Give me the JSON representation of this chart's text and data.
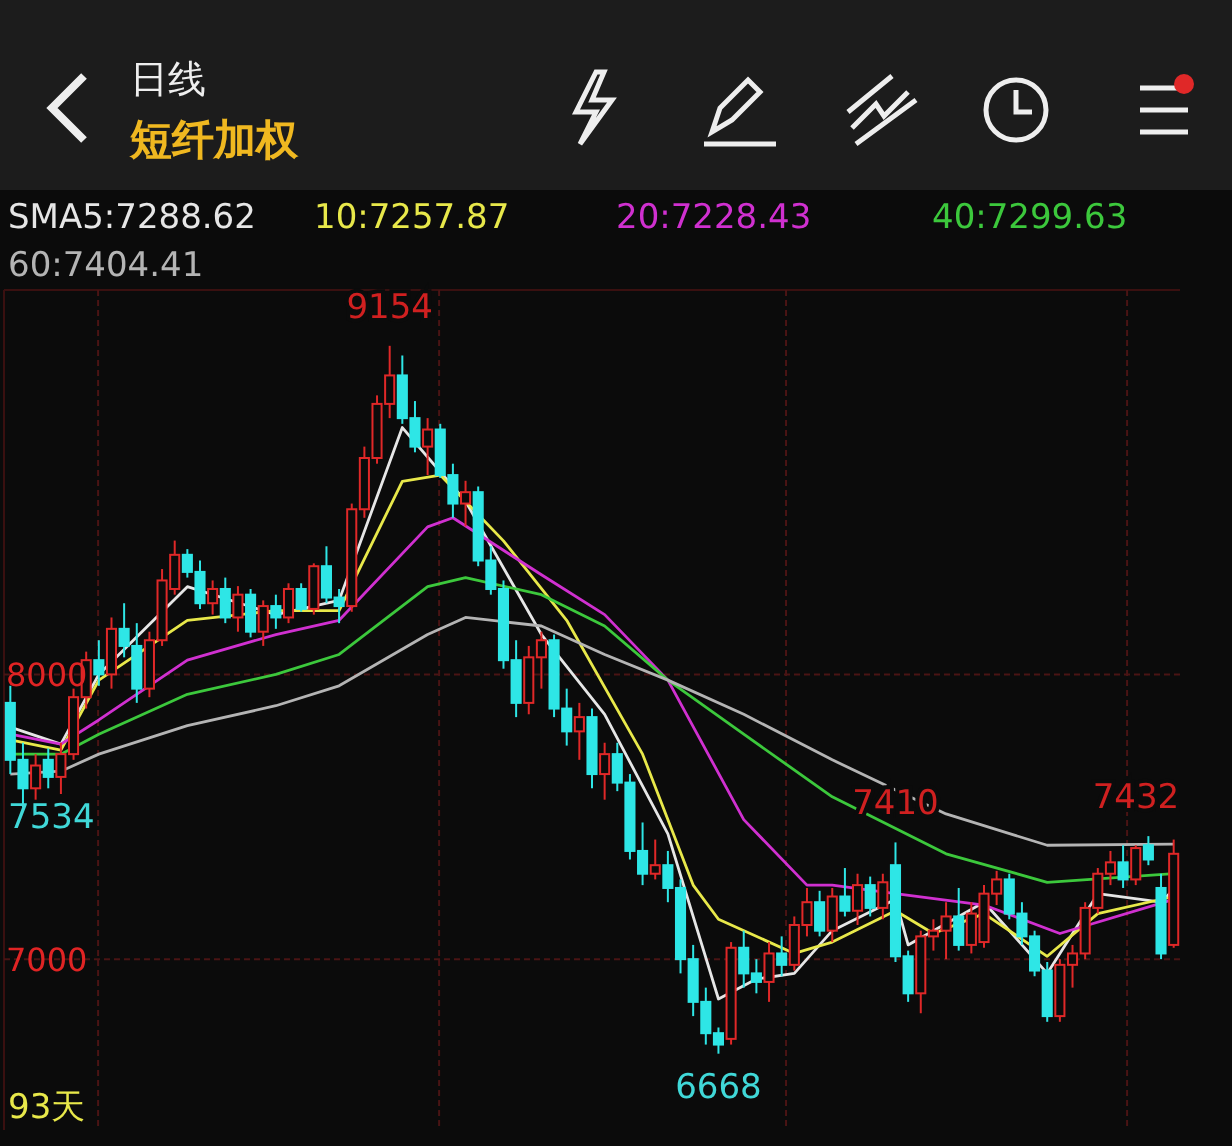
{
  "chart_data": {
    "type": "candlestick",
    "title": "短纤加权",
    "subtitle": "日线",
    "categories": [
      null,
      null,
      null,
      null,
      null,
      null,
      null,
      null,
      null,
      null,
      null,
      null,
      null,
      null,
      null,
      null,
      null,
      null,
      null,
      null,
      null,
      null,
      null,
      null,
      null,
      null,
      null,
      null,
      null,
      null,
      null,
      null,
      null,
      null,
      null,
      null,
      null,
      null,
      null,
      null,
      null,
      null,
      null,
      null,
      null,
      null,
      null,
      null,
      null,
      null,
      null,
      null,
      null,
      null,
      null,
      null,
      null,
      null,
      null,
      null,
      null,
      null,
      null,
      null,
      null,
      null,
      null,
      null,
      null,
      null,
      null,
      null,
      null,
      null,
      null,
      null,
      null,
      null,
      null,
      null,
      null,
      null,
      null,
      null,
      null,
      null,
      null,
      null,
      null,
      null,
      null,
      null,
      null
    ],
    "ohlc": [
      [
        7900,
        7960,
        7650,
        7700
      ],
      [
        7700,
        7760,
        7534,
        7600
      ],
      [
        7600,
        7720,
        7560,
        7680
      ],
      [
        7700,
        7740,
        7600,
        7640
      ],
      [
        7640,
        7760,
        7580,
        7720
      ],
      [
        7720,
        7950,
        7700,
        7920
      ],
      [
        7920,
        8080,
        7880,
        8050
      ],
      [
        8050,
        8120,
        7960,
        8000
      ],
      [
        8000,
        8200,
        7950,
        8160
      ],
      [
        8160,
        8250,
        8060,
        8100
      ],
      [
        8100,
        8180,
        7900,
        7950
      ],
      [
        7950,
        8150,
        7920,
        8120
      ],
      [
        8120,
        8370,
        8100,
        8330
      ],
      [
        8300,
        8470,
        8280,
        8420
      ],
      [
        8420,
        8440,
        8340,
        8360
      ],
      [
        8360,
        8400,
        8230,
        8250
      ],
      [
        8250,
        8330,
        8210,
        8300
      ],
      [
        8300,
        8340,
        8180,
        8200
      ],
      [
        8200,
        8310,
        8150,
        8280
      ],
      [
        8280,
        8300,
        8130,
        8150
      ],
      [
        8150,
        8260,
        8100,
        8240
      ],
      [
        8240,
        8280,
        8160,
        8200
      ],
      [
        8200,
        8320,
        8180,
        8300
      ],
      [
        8300,
        8320,
        8220,
        8230
      ],
      [
        8230,
        8390,
        8210,
        8380
      ],
      [
        8380,
        8450,
        8250,
        8270
      ],
      [
        8270,
        8300,
        8180,
        8240
      ],
      [
        8240,
        8600,
        8220,
        8580
      ],
      [
        8580,
        8800,
        8550,
        8760
      ],
      [
        8760,
        8980,
        8740,
        8950
      ],
      [
        8950,
        9154,
        8900,
        9050
      ],
      [
        9050,
        9120,
        8880,
        8900
      ],
      [
        8900,
        8960,
        8780,
        8800
      ],
      [
        8800,
        8900,
        8700,
        8860
      ],
      [
        8860,
        8880,
        8690,
        8700
      ],
      [
        8700,
        8740,
        8550,
        8600
      ],
      [
        8600,
        8680,
        8520,
        8640
      ],
      [
        8640,
        8660,
        8380,
        8400
      ],
      [
        8400,
        8450,
        8280,
        8300
      ],
      [
        8300,
        8330,
        8020,
        8050
      ],
      [
        8050,
        8120,
        7850,
        7900
      ],
      [
        7900,
        8100,
        7860,
        8060
      ],
      [
        8060,
        8150,
        7950,
        8120
      ],
      [
        8120,
        8140,
        7850,
        7880
      ],
      [
        7880,
        7950,
        7750,
        7800
      ],
      [
        7800,
        7900,
        7700,
        7850
      ],
      [
        7850,
        7880,
        7600,
        7650
      ],
      [
        7650,
        7760,
        7560,
        7720
      ],
      [
        7720,
        7760,
        7590,
        7620
      ],
      [
        7620,
        7650,
        7350,
        7380
      ],
      [
        7380,
        7480,
        7260,
        7300
      ],
      [
        7300,
        7420,
        7280,
        7330
      ],
      [
        7330,
        7380,
        7200,
        7250
      ],
      [
        7250,
        7280,
        6950,
        7000
      ],
      [
        7000,
        7050,
        6800,
        6850
      ],
      [
        6850,
        6900,
        6700,
        6740
      ],
      [
        6740,
        6760,
        6668,
        6700
      ],
      [
        6720,
        7060,
        6700,
        7040
      ],
      [
        7040,
        7100,
        6900,
        6950
      ],
      [
        6950,
        7000,
        6880,
        6920
      ],
      [
        6920,
        7060,
        6850,
        7020
      ],
      [
        7020,
        7080,
        6940,
        6980
      ],
      [
        6980,
        7150,
        6960,
        7120
      ],
      [
        7120,
        7250,
        7080,
        7200
      ],
      [
        7200,
        7240,
        7080,
        7100
      ],
      [
        7100,
        7250,
        7060,
        7220
      ],
      [
        7220,
        7320,
        7150,
        7170
      ],
      [
        7170,
        7300,
        7120,
        7260
      ],
      [
        7260,
        7290,
        7150,
        7180
      ],
      [
        7180,
        7300,
        7140,
        7270
      ],
      [
        7330,
        7410,
        6990,
        7010
      ],
      [
        7010,
        7030,
        6850,
        6880
      ],
      [
        6880,
        7100,
        6810,
        7080
      ],
      [
        7080,
        7140,
        7030,
        7100
      ],
      [
        7100,
        7200,
        7000,
        7150
      ],
      [
        7150,
        7250,
        7030,
        7050
      ],
      [
        7050,
        7200,
        7020,
        7160
      ],
      [
        7060,
        7260,
        7040,
        7230
      ],
      [
        7230,
        7310,
        7190,
        7280
      ],
      [
        7280,
        7300,
        7140,
        7160
      ],
      [
        7160,
        7200,
        7050,
        7080
      ],
      [
        7080,
        7100,
        6940,
        6960
      ],
      [
        6960,
        6990,
        6780,
        6800
      ],
      [
        6800,
        7000,
        6780,
        6980
      ],
      [
        6980,
        7050,
        6900,
        7020
      ],
      [
        7020,
        7200,
        7000,
        7180
      ],
      [
        7180,
        7320,
        7160,
        7300
      ],
      [
        7300,
        7380,
        7260,
        7340
      ],
      [
        7340,
        7400,
        7250,
        7280
      ],
      [
        7280,
        7400,
        7260,
        7390
      ],
      [
        7400,
        7432,
        7330,
        7350
      ],
      [
        7250,
        7300,
        7000,
        7020
      ],
      [
        7050,
        7420,
        7040,
        7370
      ]
    ],
    "colors": [
      "#2ee6e6",
      "#2ee6e6",
      "#e02828",
      "#2ee6e6",
      "#e02828",
      "#e02828",
      "#e02828",
      "#2ee6e6",
      "#e02828",
      "#2ee6e6",
      "#2ee6e6",
      "#e02828",
      "#e02828",
      "#e02828",
      "#2ee6e6",
      "#2ee6e6",
      "#e02828",
      "#2ee6e6",
      "#e02828",
      "#2ee6e6",
      "#e02828",
      "#2ee6e6",
      "#e02828",
      "#2ee6e6",
      "#e02828",
      "#2ee6e6",
      "#2ee6e6",
      "#e02828",
      "#e02828",
      "#e02828",
      "#e02828",
      "#2ee6e6",
      "#2ee6e6",
      "#e02828",
      "#2ee6e6",
      "#2ee6e6",
      "#e02828",
      "#2ee6e6",
      "#2ee6e6",
      "#2ee6e6",
      "#2ee6e6",
      "#e02828",
      "#e02828",
      "#2ee6e6",
      "#2ee6e6",
      "#e02828",
      "#2ee6e6",
      "#e02828",
      "#2ee6e6",
      "#2ee6e6",
      "#2ee6e6",
      "#e02828",
      "#2ee6e6",
      "#2ee6e6",
      "#2ee6e6",
      "#2ee6e6",
      "#2ee6e6",
      "#e02828",
      "#2ee6e6",
      "#2ee6e6",
      "#e02828",
      "#2ee6e6",
      "#e02828",
      "#e02828",
      "#2ee6e6",
      "#e02828",
      "#2ee6e6",
      "#e02828",
      "#2ee6e6",
      "#e02828",
      "#2ee6e6",
      "#2ee6e6",
      "#e02828",
      "#e02828",
      "#e02828",
      "#2ee6e6",
      "#e02828",
      "#e02828",
      "#e02828",
      "#2ee6e6",
      "#2ee6e6",
      "#2ee6e6",
      "#2ee6e6",
      "#e02828",
      "#e02828",
      "#e02828",
      "#e02828",
      "#e02828",
      "#2ee6e6",
      "#e02828",
      "#2ee6e6",
      "#2ee6e6",
      "#e02828"
    ],
    "series": [
      {
        "type": "line",
        "name": "SMA5:7288.62",
        "color": "#e6e6e6",
        "values": [
          7815,
          null,
          null,
          null,
          7755,
          null,
          null,
          8000,
          null,
          null,
          null,
          null,
          null,
          null,
          8308,
          null,
          null,
          null,
          null,
          null,
          null,
          8210,
          null,
          null,
          null,
          null,
          8260,
          null,
          null,
          null,
          null,
          8867,
          null,
          null,
          null,
          null,
          8608,
          null,
          null,
          null,
          null,
          null,
          8140,
          null,
          null,
          null,
          null,
          7860,
          null,
          null,
          null,
          null,
          7440,
          null,
          null,
          null,
          6860,
          null,
          null,
          6930,
          null,
          null,
          6950,
          null,
          null,
          7100,
          null,
          null,
          null,
          null,
          7210,
          7050,
          null,
          null,
          null,
          null,
          null,
          7200,
          null,
          null,
          null,
          null,
          6950,
          null,
          null,
          null,
          7230,
          null,
          null,
          null,
          null,
          7200,
          7245
        ]
      },
      {
        "type": "line",
        "name": "10:7257.87",
        "color": "#e8e84a",
        "values": [
          7770,
          null,
          null,
          null,
          7734,
          null,
          null,
          7980,
          null,
          null,
          null,
          null,
          null,
          null,
          8190,
          null,
          null,
          null,
          null,
          null,
          null,
          8224,
          null,
          null,
          null,
          null,
          8224,
          null,
          null,
          null,
          null,
          8678,
          null,
          null,
          8700,
          null,
          null,
          null,
          null,
          8469,
          null,
          null,
          null,
          null,
          8190,
          null,
          null,
          null,
          null,
          null,
          7720,
          null,
          null,
          null,
          7260,
          null,
          7140,
          null,
          null,
          null,
          null,
          null,
          7020,
          null,
          null,
          7060,
          null,
          null,
          null,
          null,
          7170,
          null,
          null,
          7090,
          null,
          null,
          null,
          7160,
          null,
          null,
          null,
          null,
          7010,
          null,
          null,
          null,
          7160,
          null,
          null,
          null,
          null,
          null,
          7220
        ]
      },
      {
        "type": "line",
        "name": "20:7228.43",
        "color": "#d030d0",
        "values": [
          7790,
          null,
          null,
          null,
          7755,
          null,
          null,
          7840,
          null,
          null,
          null,
          null,
          null,
          null,
          8050,
          null,
          null,
          null,
          null,
          null,
          null,
          8140,
          null,
          null,
          null,
          null,
          8190,
          null,
          null,
          null,
          null,
          null,
          null,
          8518,
          null,
          8550,
          null,
          null,
          null,
          null,
          null,
          null,
          8350,
          null,
          null,
          null,
          null,
          8210,
          null,
          null,
          null,
          null,
          7980,
          null,
          null,
          null,
          null,
          null,
          7490,
          null,
          null,
          null,
          null,
          7260,
          null,
          7260,
          null,
          null,
          null,
          null,
          7230,
          null,
          null,
          null,
          null,
          null,
          null,
          7190,
          null,
          null,
          null,
          null,
          null,
          7090,
          null,
          null,
          null,
          null,
          null,
          null,
          null,
          null,
          7210
        ]
      },
      {
        "type": "line",
        "name": "40:7299.63",
        "color": "#3cc83c",
        "values": [
          7720,
          null,
          null,
          null,
          7720,
          null,
          null,
          7790,
          null,
          null,
          null,
          null,
          null,
          null,
          7930,
          null,
          null,
          null,
          null,
          null,
          null,
          8000,
          null,
          null,
          null,
          null,
          8070,
          null,
          null,
          null,
          null,
          null,
          null,
          8308,
          null,
          null,
          8340,
          null,
          null,
          null,
          null,
          null,
          8280,
          null,
          null,
          null,
          null,
          8170,
          null,
          null,
          null,
          null,
          7980,
          null,
          null,
          null,
          null,
          null,
          7790,
          null,
          null,
          null,
          null,
          null,
          null,
          7570,
          null,
          null,
          null,
          null,
          null,
          null,
          null,
          null,
          7370,
          null,
          null,
          null,
          null,
          null,
          null,
          null,
          7270,
          null,
          null,
          null,
          null,
          null,
          null,
          null,
          null,
          null,
          7300
        ]
      },
      {
        "type": "line",
        "name": "60:7404.41",
        "color": "#b4b4b4",
        "values": [
          7650,
          null,
          null,
          null,
          7660,
          null,
          null,
          7720,
          null,
          null,
          null,
          null,
          null,
          null,
          7820,
          null,
          null,
          null,
          null,
          null,
          null,
          7890,
          null,
          null,
          null,
          null,
          7960,
          null,
          null,
          null,
          null,
          null,
          null,
          8140,
          null,
          null,
          8200,
          null,
          null,
          null,
          null,
          null,
          8170,
          null,
          null,
          null,
          null,
          8070,
          null,
          null,
          null,
          null,
          7980,
          null,
          null,
          null,
          null,
          null,
          7860,
          null,
          null,
          null,
          null,
          null,
          null,
          7700,
          null,
          null,
          null,
          null,
          null,
          null,
          null,
          null,
          7510,
          null,
          null,
          null,
          null,
          null,
          null,
          null,
          7400,
          null,
          null,
          null,
          null,
          null,
          null,
          null,
          null,
          null,
          7404
        ]
      }
    ],
    "ylim": [
      6400,
      9350
    ],
    "yticks": [
      7000,
      8000
    ],
    "grid": "y",
    "legend": "top left",
    "annotations": [
      {
        "text": "9154",
        "y": 9154
      },
      "7534",
      {
        "text": "6668",
        "y": 6668
      },
      {
        "text": "7410",
        "y": 7410
      },
      {
        "text": "7432",
        "y": 7432
      },
      "93天"
    ]
  }
}
